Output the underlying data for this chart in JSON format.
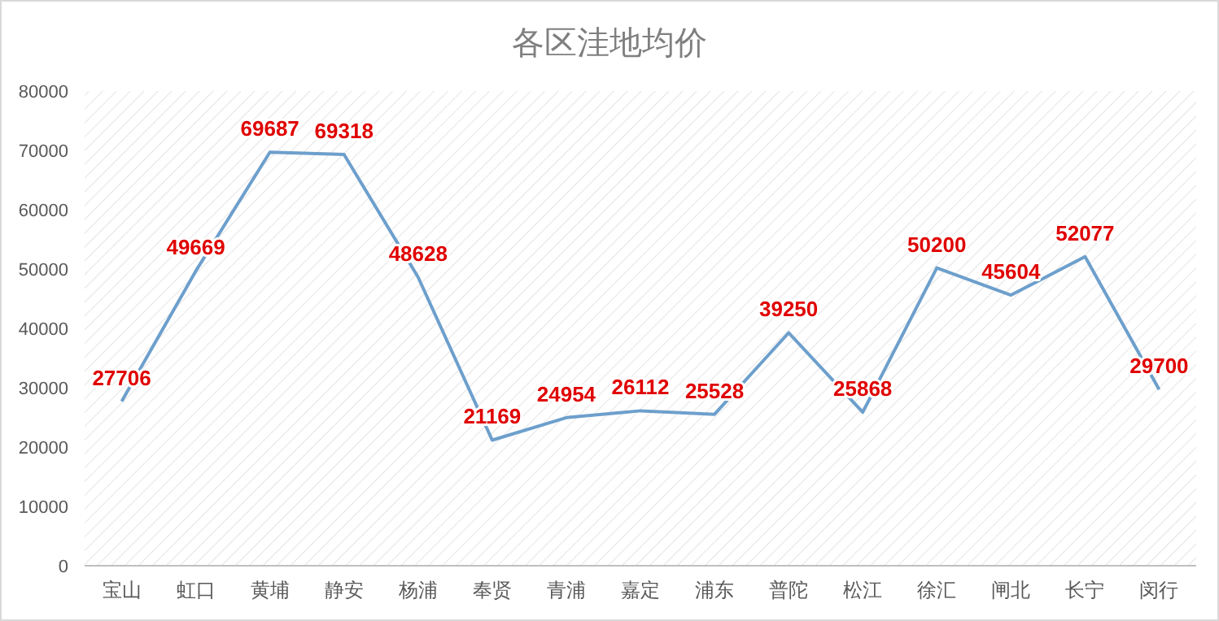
{
  "chart_data": {
    "type": "line",
    "title": "各区洼地均价",
    "categories": [
      "宝山",
      "虹口",
      "黄埔",
      "静安",
      "杨浦",
      "奉贤",
      "青浦",
      "嘉定",
      "浦东",
      "普陀",
      "松江",
      "徐汇",
      "闸北",
      "长宁",
      "闵行"
    ],
    "series": [
      {
        "color": "#6d9fcc",
        "values": [
          27706,
          49669,
          69687,
          69318,
          48628,
          21169,
          24954,
          26112,
          25528,
          39250,
          25868,
          50200,
          45604,
          52077,
          29700
        ]
      }
    ],
    "ylim": [
      0,
      80000
    ],
    "yticks": [
      0,
      10000,
      20000,
      30000,
      40000,
      50000,
      60000,
      70000,
      80000
    ],
    "data_labels": true,
    "marker": "none",
    "line_style": "solid",
    "grid": false
  }
}
